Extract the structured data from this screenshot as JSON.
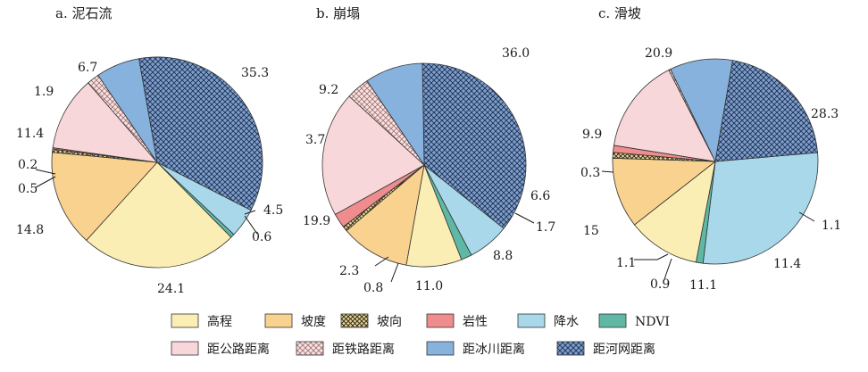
{
  "chart_data": [
    {
      "type": "pie",
      "title": "a. 泥石流",
      "slices": [
        {
          "category": "距河网距离",
          "value": 35.3
        },
        {
          "category": "降水",
          "value": 4.5
        },
        {
          "category": "NDVI",
          "value": 0.6
        },
        {
          "category": "高程",
          "value": 24.1
        },
        {
          "category": "坡度",
          "value": 14.8
        },
        {
          "category": "坡向",
          "value": 0.5
        },
        {
          "category": "岩性",
          "value": 0.2
        },
        {
          "category": "距公路距离",
          "value": 11.4
        },
        {
          "category": "距铁路距离",
          "value": 1.9
        },
        {
          "category": "距冰川距离",
          "value": 6.7
        }
      ]
    },
    {
      "type": "pie",
      "title": "b. 崩塌",
      "slices": [
        {
          "category": "距河网距离",
          "value": 36.0
        },
        {
          "category": "降水",
          "value": 6.6
        },
        {
          "category": "NDVI",
          "value": 1.7
        },
        {
          "category": "高程",
          "value": 8.8
        },
        {
          "category": "坡度",
          "value": 11.0
        },
        {
          "category": "坡向",
          "value": 0.8
        },
        {
          "category": "岩性",
          "value": 2.3
        },
        {
          "category": "距公路距离",
          "value": 19.9
        },
        {
          "category": "距铁路距离",
          "value": 3.7
        },
        {
          "category": "距冰川距离",
          "value": 9.2
        }
      ]
    },
    {
      "type": "pie",
      "title": "c. 滑坡",
      "slices": [
        {
          "category": "降水",
          "value": 28.3
        },
        {
          "category": "NDVI",
          "value": 1.1
        },
        {
          "category": "高程",
          "value": 11.4
        },
        {
          "category": "坡度",
          "value": 11.1
        },
        {
          "category": "坡向",
          "value": 0.9
        },
        {
          "category": "岩性",
          "value": 1.1
        },
        {
          "category": "距公路距离",
          "value": 15
        },
        {
          "category": "距铁路距离",
          "value": 0.3
        },
        {
          "category": "距冰川距离",
          "value": 9.9
        },
        {
          "category": "距河网距离",
          "value": 20.9
        }
      ]
    }
  ],
  "slice_labels": [
    [
      "35.3",
      "4.5",
      "0.6",
      "24.1",
      "14.8",
      "0.5",
      "0.2",
      "11.4",
      "1.9",
      "6.7"
    ],
    [
      "36.0",
      "6.6",
      "1.7",
      "8.8",
      "11.0",
      "0.8",
      "2.3",
      "19.9",
      "3.7",
      "9.2"
    ],
    [
      "28.3",
      "1.1",
      "11.4",
      "11.1",
      "0.9",
      "1.1",
      "15",
      "0.3",
      "9.9",
      "20.9"
    ]
  ],
  "legend": [
    {
      "label": "高程",
      "color": "#fbeeb4",
      "pattern": "solid"
    },
    {
      "label": "坡度",
      "color": "#f8d28e",
      "pattern": "solid"
    },
    {
      "label": "坡向",
      "color": "#e8d9a0",
      "pattern": "crosshatch-dark"
    },
    {
      "label": "岩性",
      "color": "#ee8c8e",
      "pattern": "solid"
    },
    {
      "label": "降水",
      "color": "#a8d8ea",
      "pattern": "solid"
    },
    {
      "label": "NDVI",
      "color": "#5fb8a4",
      "pattern": "solid"
    },
    {
      "label": "距公路距离",
      "color": "#f8d7da",
      "pattern": "solid"
    },
    {
      "label": "距铁路距离",
      "color": "#f5dcdc",
      "pattern": "crosshatch-pink"
    },
    {
      "label": "距冰川距离",
      "color": "#86b2dd",
      "pattern": "solid"
    },
    {
      "label": "距河网距离",
      "color": "#7d9fd0",
      "pattern": "crosshatch-navy"
    }
  ]
}
